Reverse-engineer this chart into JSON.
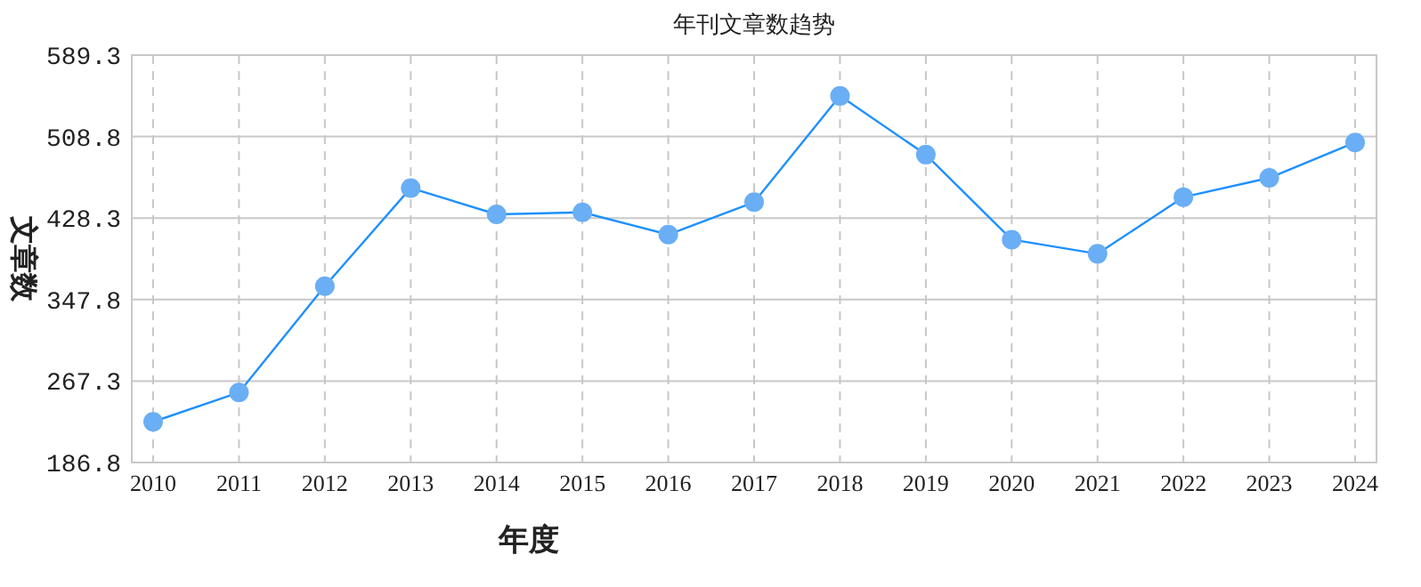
{
  "chart_data": {
    "type": "line",
    "title": "年刊文章数趋势",
    "xlabel": "年度",
    "ylabel": "文章数",
    "categories": [
      "2010",
      "2011",
      "2012",
      "2013",
      "2014",
      "2015",
      "2016",
      "2017",
      "2018",
      "2019",
      "2020",
      "2021",
      "2022",
      "2023",
      "2024"
    ],
    "series": [
      {
        "color": "#1e90ff",
        "values": [
          227,
          256,
          361,
          458,
          432,
          434,
          412,
          444,
          549,
          491,
          407,
          393,
          449,
          468,
          503
        ]
      }
    ],
    "ylim": [
      186.8,
      589.3
    ],
    "yticks": [
      186.8,
      267.3,
      347.8,
      428.3,
      508.8,
      589.3
    ],
    "grid": true,
    "marker": "circle",
    "line_style": "solid"
  }
}
